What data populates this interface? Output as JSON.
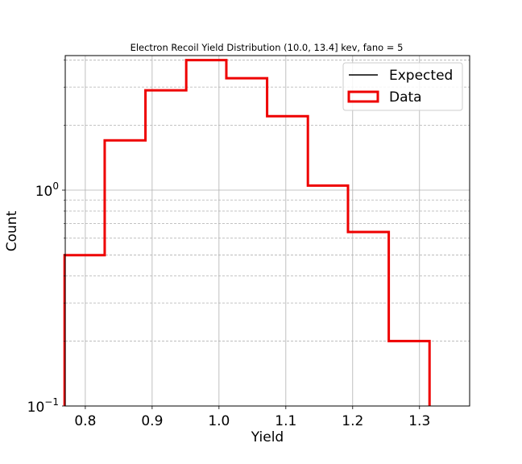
{
  "chart_data": {
    "type": "histogram",
    "title": "Electron Recoil Yield Distribution (10.0, 13.4] kev, fano = 5",
    "xlabel": "Yield",
    "ylabel": "Count",
    "xlim": [
      0.77,
      1.375
    ],
    "ylim": [
      0.1,
      4.2
    ],
    "yscale": "log",
    "grid": true,
    "legend_placement": "top-right",
    "x_ticks": [
      0.8,
      0.9,
      1.0,
      1.1,
      1.2,
      1.3
    ],
    "x_tick_labels": [
      "0.8",
      "0.9",
      "1.0",
      "1.1",
      "1.2",
      "1.3"
    ],
    "y_major_ticks": [
      {
        "value": 0.1,
        "base": "10",
        "exp": "−1"
      },
      {
        "value": 1.0,
        "base": "10",
        "exp": "0"
      }
    ],
    "y_minor_ticks": [
      0.2,
      0.3,
      0.4,
      0.5,
      0.6,
      0.7,
      0.8,
      0.9,
      2,
      3,
      4
    ],
    "bin_edges": [
      0.769,
      0.829,
      0.89,
      0.951,
      1.011,
      1.072,
      1.133,
      1.193,
      1.254,
      1.315
    ],
    "series": [
      {
        "name": "Expected",
        "color": "#000000",
        "style": "line",
        "values": []
      },
      {
        "name": "Data",
        "color": "#ee0000",
        "style": "step",
        "values": [
          0.5,
          1.7,
          2.9,
          4.0,
          3.3,
          2.2,
          1.05,
          0.64,
          0.2
        ]
      }
    ]
  }
}
